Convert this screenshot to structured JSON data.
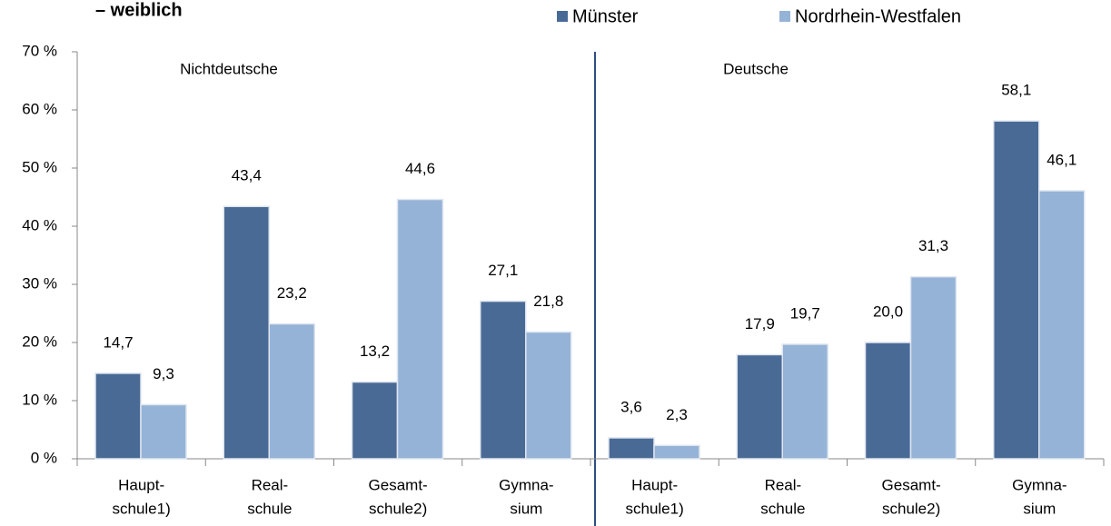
{
  "chart_data": {
    "type": "bar",
    "title": "– weiblich",
    "annotations": [
      "Nichtdeutsche",
      "Deutsche"
    ],
    "categories": [
      [
        "Haupt-",
        "schule1)"
      ],
      [
        "Real-",
        "schule"
      ],
      [
        "Gesamt-",
        "schule2)"
      ],
      [
        "Gymna-",
        "sium"
      ],
      [
        "Haupt-",
        "schule1)"
      ],
      [
        "Real-",
        "schule"
      ],
      [
        "Gesamt-",
        "schule2)"
      ],
      [
        "Gymna-",
        "sium"
      ]
    ],
    "series": [
      {
        "name": "Münster",
        "color": "#4a6a96",
        "values": [
          14.7,
          43.4,
          13.2,
          27.1,
          3.6,
          17.9,
          20.0,
          58.1
        ],
        "value_labels": [
          "14,7",
          "43,4",
          "13,2",
          "27,1",
          "3,6",
          "17,9",
          "20,0",
          "58,1"
        ]
      },
      {
        "name": "Nordrhein-Westfalen",
        "color": "#95b3d7",
        "values": [
          9.3,
          23.2,
          44.6,
          21.8,
          2.3,
          19.7,
          31.3,
          46.1
        ],
        "value_labels": [
          "9,3",
          "23,2",
          "44,6",
          "21,8",
          "2,3",
          "19,7",
          "31,3",
          "46,1"
        ]
      }
    ],
    "ylim": [
      0,
      70
    ],
    "yticks": [
      {
        "value": 0,
        "label": "0 %"
      },
      {
        "value": 10,
        "label": "10 %"
      },
      {
        "value": 20,
        "label": "20 %"
      },
      {
        "value": 30,
        "label": "30 %"
      },
      {
        "value": 40,
        "label": "40 %"
      },
      {
        "value": 50,
        "label": "50 %"
      },
      {
        "value": 60,
        "label": "60 %"
      },
      {
        "value": 70,
        "label": "70 %"
      }
    ],
    "legend": "top"
  }
}
